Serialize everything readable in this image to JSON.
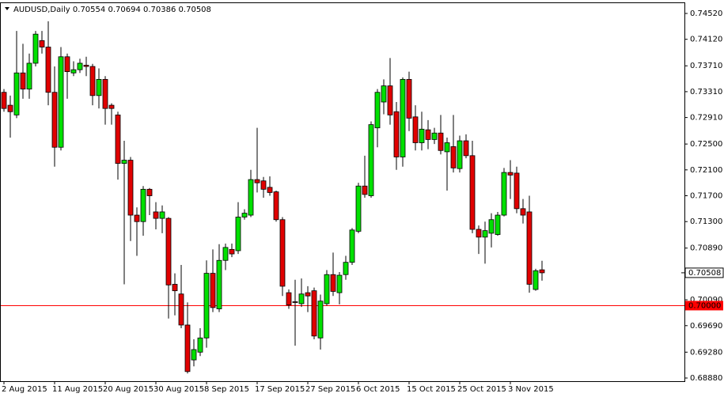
{
  "chart_data": {
    "type": "candlestick",
    "title": "AUDUSD,Daily",
    "categories": [
      "2 Aug 2015",
      null,
      null,
      null,
      null,
      null,
      null,
      null,
      "11 Aug 2015",
      null,
      null,
      null,
      null,
      null,
      null,
      null,
      "20 Aug 2015",
      null,
      null,
      null,
      null,
      null,
      null,
      null,
      "30 Aug 2015",
      null,
      null,
      null,
      null,
      null,
      null,
      null,
      "8 Sep 2015",
      null,
      null,
      null,
      null,
      null,
      null,
      null,
      "17 Sep 2015",
      null,
      null,
      null,
      null,
      null,
      null,
      null,
      "27 Sep 2015",
      null,
      null,
      null,
      null,
      null,
      null,
      null,
      "6 Oct 2015",
      null,
      null,
      null,
      null,
      null,
      null,
      null,
      "15 Oct 2015",
      null,
      null,
      null,
      null,
      null,
      null,
      null,
      "25 Oct 2015",
      null,
      null,
      null,
      null,
      null,
      null,
      null,
      "3 Nov 2015",
      null,
      null,
      null,
      null,
      null
    ],
    "open": [
      0.733,
      0.731,
      0.7295,
      0.736,
      0.7335,
      0.7375,
      0.741,
      0.74,
      0.733,
      0.7245,
      0.7385,
      0.736,
      0.7365,
      0.7372,
      0.737,
      0.7325,
      0.735,
      0.731,
      0.7295,
      0.722,
      0.7225,
      0.714,
      0.713,
      0.718,
      0.7145,
      0.7135,
      0.7135,
      0.7033,
      0.7018,
      0.697,
      0.6916,
      0.6928,
      0.695,
      0.705,
      0.6995,
      0.707,
      0.7087,
      0.7085,
      0.7137,
      0.714,
      0.7195,
      0.7193,
      0.7183,
      0.7176,
      0.7133,
      0.702,
      0.7006,
      0.7003,
      0.702,
      0.7023,
      0.695,
      0.7003,
      0.7048,
      0.702,
      0.7048,
      0.7067,
      0.7115,
      0.7185,
      0.717,
      0.7275,
      0.7315,
      0.734,
      0.73,
      0.723,
      0.735,
      0.7292,
      0.7252,
      0.7272,
      0.7257,
      0.7267,
      0.7238,
      0.7246,
      0.7212,
      0.7255,
      0.7232,
      0.7118,
      0.7106,
      0.7112,
      0.711,
      0.714,
      0.7206,
      0.7205,
      0.715,
      0.7145,
      0.7025,
      0.70554
    ],
    "high": [
      0.7335,
      0.7325,
      0.7425,
      0.7405,
      0.739,
      0.7425,
      0.7425,
      0.744,
      0.737,
      0.74,
      0.739,
      0.7378,
      0.7382,
      0.7385,
      0.7374,
      0.7367,
      0.7355,
      0.7313,
      0.73,
      0.7255,
      0.723,
      0.7152,
      0.7185,
      0.7182,
      0.716,
      0.7155,
      0.7137,
      0.705,
      0.7063,
      0.7005,
      0.6948,
      0.6965,
      0.707,
      0.7087,
      0.7095,
      0.7096,
      0.7096,
      0.716,
      0.7149,
      0.721,
      0.7275,
      0.7199,
      0.72,
      0.7178,
      0.7137,
      0.7025,
      0.704,
      0.7042,
      0.703,
      0.7028,
      0.7017,
      0.7055,
      0.7082,
      0.7052,
      0.7077,
      0.712,
      0.719,
      0.7232,
      0.7285,
      0.7335,
      0.735,
      0.7383,
      0.7315,
      0.7353,
      0.7362,
      0.731,
      0.73,
      0.7287,
      0.7275,
      0.7295,
      0.726,
      0.7295,
      0.7263,
      0.7265,
      0.7255,
      0.7124,
      0.713,
      0.7143,
      0.7145,
      0.7213,
      0.7225,
      0.7215,
      0.7165,
      0.717,
      0.7057,
      0.70694
    ],
    "low": [
      0.73,
      0.726,
      0.729,
      0.732,
      0.732,
      0.737,
      0.739,
      0.731,
      0.7215,
      0.724,
      0.732,
      0.7355,
      0.736,
      0.7355,
      0.731,
      0.7305,
      0.728,
      0.728,
      0.7195,
      0.7033,
      0.71,
      0.7077,
      0.7108,
      0.714,
      0.7118,
      0.7112,
      0.698,
      0.6985,
      0.6965,
      0.6895,
      0.6906,
      0.6922,
      0.6935,
      0.699,
      0.699,
      0.7055,
      0.7075,
      0.708,
      0.7133,
      0.7137,
      0.7175,
      0.7167,
      0.717,
      0.713,
      0.7015,
      0.6995,
      0.6938,
      0.6998,
      0.699,
      0.6948,
      0.6932,
      0.7,
      0.7015,
      0.7002,
      0.704,
      0.7063,
      0.7112,
      0.7167,
      0.7167,
      0.7245,
      0.7296,
      0.728,
      0.721,
      0.7215,
      0.727,
      0.724,
      0.724,
      0.7242,
      0.725,
      0.7234,
      0.7178,
      0.7206,
      0.7206,
      0.7228,
      0.7112,
      0.708,
      0.7065,
      0.709,
      0.7108,
      0.7138,
      0.7165,
      0.7143,
      0.7127,
      0.702,
      0.7023,
      0.70386
    ],
    "close": [
      0.7305,
      0.73,
      0.736,
      0.7335,
      0.7375,
      0.742,
      0.74,
      0.733,
      0.7245,
      0.7385,
      0.7362,
      0.7365,
      0.7375,
      0.737,
      0.7325,
      0.735,
      0.7305,
      0.7305,
      0.722,
      0.7225,
      0.714,
      0.713,
      0.718,
      0.717,
      0.7135,
      0.7145,
      0.7032,
      0.7023,
      0.697,
      0.6898,
      0.6932,
      0.695,
      0.705,
      0.6997,
      0.707,
      0.709,
      0.708,
      0.7137,
      0.7143,
      0.7195,
      0.719,
      0.718,
      0.7175,
      0.7133,
      0.703,
      0.7001,
      0.7005,
      0.7018,
      0.7015,
      0.6953,
      0.7007,
      0.7048,
      0.7022,
      0.7047,
      0.7067,
      0.7117,
      0.7185,
      0.7172,
      0.728,
      0.733,
      0.734,
      0.7295,
      0.723,
      0.735,
      0.729,
      0.7252,
      0.7273,
      0.7257,
      0.7267,
      0.724,
      0.7252,
      0.7213,
      0.7255,
      0.7232,
      0.7118,
      0.7106,
      0.7116,
      0.7133,
      0.714,
      0.7206,
      0.7202,
      0.715,
      0.714,
      0.7033,
      0.7054,
      0.70508
    ],
    "up_color": "#00e000",
    "down_color": "#e00000",
    "ylim": [
      0.68831,
      0.74667
    ],
    "yticks": [
      {
        "value": 0.7452,
        "label": "0.74520"
      },
      {
        "value": 0.7412,
        "label": "0.74120"
      },
      {
        "value": 0.7371,
        "label": "0.73710"
      },
      {
        "value": 0.7331,
        "label": "0.73310"
      },
      {
        "value": 0.7291,
        "label": "0.72910"
      },
      {
        "value": 0.725,
        "label": "0.72500"
      },
      {
        "value": 0.721,
        "label": "0.72100"
      },
      {
        "value": 0.717,
        "label": "0.71700"
      },
      {
        "value": 0.713,
        "label": "0.71300"
      },
      {
        "value": 0.7089,
        "label": "0.70890"
      },
      {
        "value": 0.7009,
        "label": "0.70090"
      },
      {
        "value": 0.6969,
        "label": "0.69690"
      },
      {
        "value": 0.6928,
        "label": "0.69280"
      },
      {
        "value": 0.6888,
        "label": "0.68880"
      }
    ],
    "hline": {
      "value": 0.7,
      "label": "0.70000",
      "color": "#ff0000"
    }
  }
}
